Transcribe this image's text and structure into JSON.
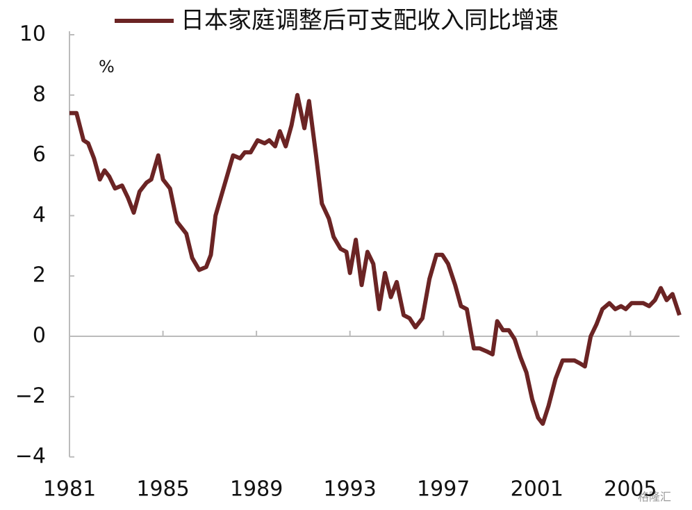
{
  "chart_data": {
    "type": "line",
    "x": [
      1981.0,
      1981.3,
      1981.6,
      1981.8,
      1982.05,
      1982.3,
      1982.5,
      1982.7,
      1982.95,
      1983.25,
      1983.5,
      1983.75,
      1984.0,
      1984.3,
      1984.5,
      1984.8,
      1985.0,
      1985.3,
      1985.6,
      1986.0,
      1986.25,
      1986.55,
      1986.85,
      1987.05,
      1987.25,
      1987.55,
      1988.0,
      1988.3,
      1988.5,
      1988.75,
      1989.05,
      1989.35,
      1989.55,
      1989.8,
      1990.0,
      1990.25,
      1990.5,
      1990.75,
      1991.05,
      1991.25,
      1991.55,
      1991.8,
      1992.1,
      1992.3,
      1992.6,
      1992.85,
      1993.0,
      1993.25,
      1993.5,
      1993.75,
      1994.0,
      1994.25,
      1994.5,
      1994.75,
      1995.0,
      1995.3,
      1995.55,
      1995.8,
      1996.1,
      1996.4,
      1996.7,
      1996.95,
      1997.2,
      1997.5,
      1997.75,
      1998.0,
      1998.3,
      1998.55,
      1998.85,
      1999.1,
      1999.3,
      1999.55,
      1999.8,
      2000.05,
      2000.3,
      2000.55,
      2000.8,
      2001.05,
      2001.25,
      2001.5,
      2001.8,
      2002.1,
      2002.3,
      2002.6,
      2002.85,
      2003.05,
      2003.3,
      2003.55,
      2003.8,
      2004.1,
      2004.35,
      2004.6,
      2004.8,
      2005.05,
      2005.3,
      2005.55,
      2005.8,
      2006.05,
      2006.3,
      2006.55,
      2006.8,
      2007.1
    ],
    "series": [
      {
        "name": "日本家庭调整后可支配收入同比增速",
        "color": "#6b2424",
        "values": [
          7.4,
          7.4,
          6.5,
          6.4,
          5.9,
          5.2,
          5.5,
          5.3,
          4.9,
          5.0,
          4.6,
          4.1,
          4.8,
          5.1,
          5.2,
          6.0,
          5.2,
          4.9,
          3.8,
          3.4,
          2.6,
          2.2,
          2.3,
          2.7,
          4.0,
          4.8,
          6.0,
          5.9,
          6.1,
          6.1,
          6.5,
          6.4,
          6.5,
          6.3,
          6.8,
          6.3,
          7.0,
          8.0,
          6.9,
          7.8,
          6.0,
          4.4,
          3.9,
          3.3,
          2.9,
          2.8,
          2.1,
          3.2,
          1.7,
          2.8,
          2.4,
          0.9,
          2.1,
          1.3,
          1.8,
          0.7,
          0.6,
          0.3,
          0.6,
          1.9,
          2.7,
          2.7,
          2.4,
          1.7,
          1.0,
          0.9,
          -0.4,
          -0.4,
          -0.5,
          -0.6,
          0.5,
          0.2,
          0.2,
          -0.1,
          -0.7,
          -1.2,
          -2.1,
          -2.7,
          -2.9,
          -2.3,
          -1.4,
          -0.8,
          -0.8,
          -0.8,
          -0.9,
          -1.0,
          0.0,
          0.4,
          0.9,
          1.1,
          0.9,
          1.0,
          0.9,
          1.1,
          1.1,
          1.1,
          1.0,
          1.2,
          1.6,
          1.2,
          1.4,
          0.7
        ]
      }
    ],
    "xlim": [
      1981,
      2007.1
    ],
    "xticks": [
      1981,
      1985,
      1989,
      1993,
      1997,
      2001,
      2005
    ],
    "ylim": [
      -4,
      10
    ],
    "yticks": [
      {
        "value": -4,
        "label": "−4"
      },
      {
        "value": -2,
        "label": "−2"
      },
      0,
      2,
      4,
      6,
      8,
      10
    ],
    "y_unit": "%",
    "legend": "top-right",
    "watermark": "格隆汇"
  }
}
